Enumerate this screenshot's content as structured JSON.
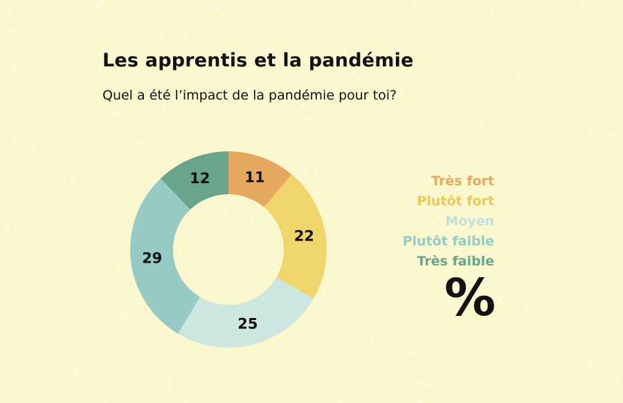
{
  "chart_data": {
    "type": "pie",
    "title": "Les apprentis et la pandémie",
    "subtitle": "Quel a été l’impact de la pandémie pour toi?",
    "unit": "%",
    "categories": [
      "Très fort",
      "Plutôt fort",
      "Moyen",
      "Plutôt faible",
      "Très faible"
    ],
    "values": [
      11,
      22,
      25,
      29,
      12
    ],
    "colors": [
      "#e6a85e",
      "#f0d56c",
      "#cde6df",
      "#95cbc4",
      "#68a38b"
    ],
    "legend": "right"
  },
  "legend_colors": [
    "#e6a85e",
    "#e9c95a",
    "#c3e1dc",
    "#95cbc4",
    "#6aa58c"
  ]
}
